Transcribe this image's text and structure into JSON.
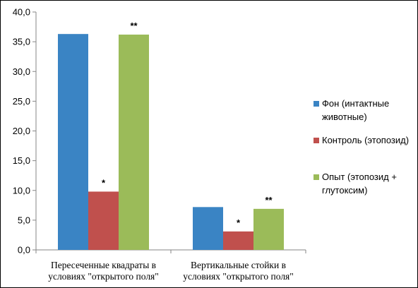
{
  "chart_data": {
    "type": "bar",
    "categories": [
      [
        "Пересеченные квадраты в",
        "условиях \"открытого поля\""
      ],
      [
        "Вертикальные стойки в",
        "условиях \"открытого поля\""
      ]
    ],
    "series": [
      {
        "name": "Фон (интактные животные)",
        "legend_lines": [
          "Фон (интактные",
          "животные)"
        ],
        "color": "#3a84c4",
        "values": [
          36.3,
          7.2
        ],
        "labels": [
          "",
          ""
        ]
      },
      {
        "name": "Контроль (этопозид)",
        "legend_lines": [
          "Контроль (этопозид)"
        ],
        "color": "#c0504d",
        "values": [
          9.8,
          3.1
        ],
        "labels": [
          "*",
          "*"
        ]
      },
      {
        "name": "Опыт (этопозид + глутоксим)",
        "legend_lines": [
          "Опыт (этопозид +",
          "глутоксим)"
        ],
        "color": "#9bbb59",
        "values": [
          36.2,
          6.9
        ],
        "labels": [
          "**",
          "**"
        ]
      }
    ],
    "ylim": [
      0,
      40
    ],
    "ytick_step": 5,
    "ytick_labels": [
      "0,0",
      "5,0",
      "10,0",
      "15,0",
      "20,0",
      "25,0",
      "30,0",
      "35,0",
      "40,0"
    ],
    "title": "",
    "xlabel": "",
    "ylabel": "",
    "grid": false,
    "legend_position": "right"
  }
}
